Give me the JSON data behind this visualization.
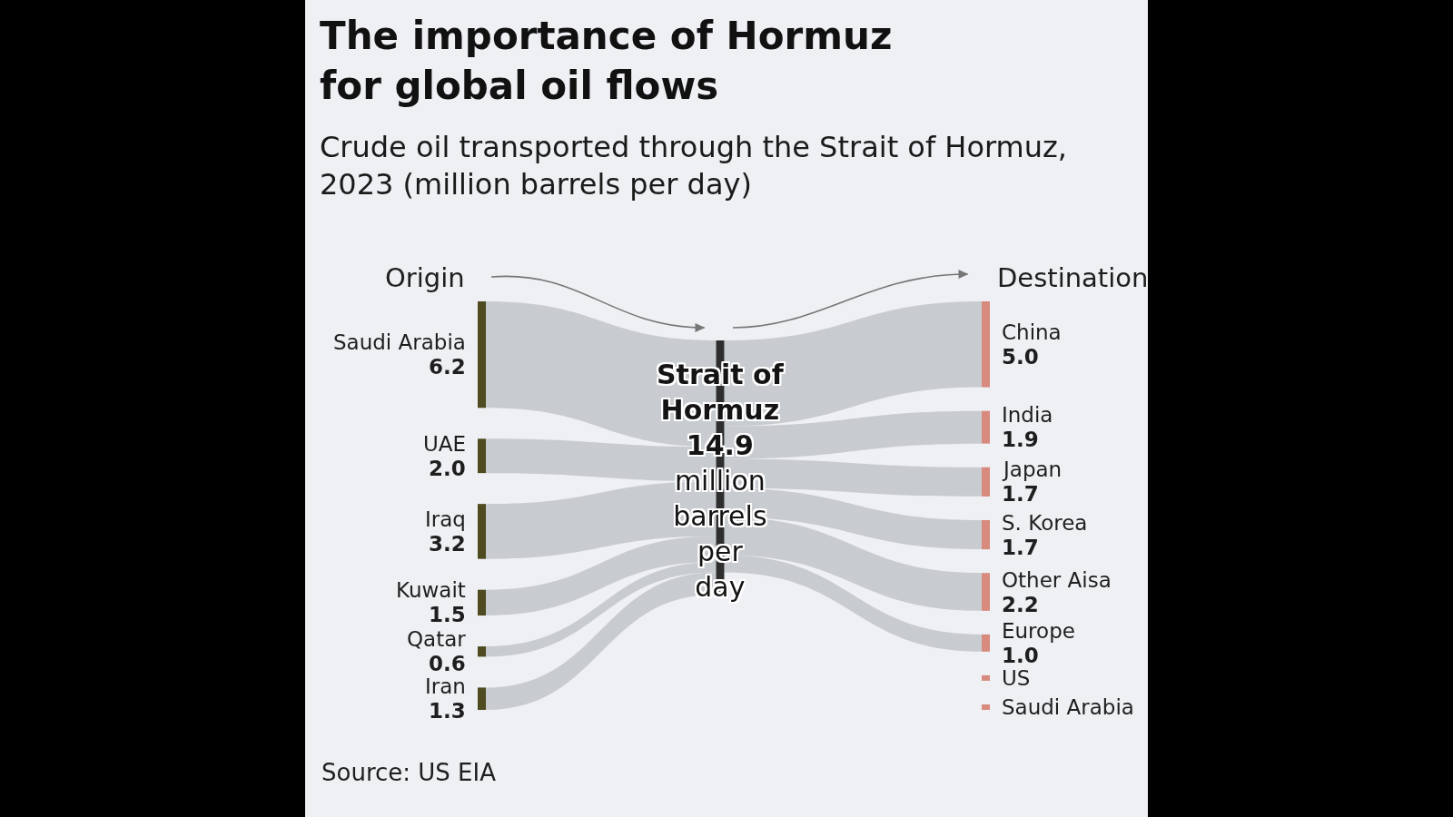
{
  "chart_data": {
    "type": "other",
    "title": "The importance of Hormuz for global oil flows",
    "subtitle": "Crude oil transported through the Strait of Hormuz, 2023 (million barrels per day)",
    "categories": [
      "Saudi Arabia",
      "UAE",
      "Iraq",
      "Kuwait",
      "Qatar",
      "Iran",
      "China",
      "India",
      "Japan",
      "S. Korea",
      "Other Aisa",
      "Europe",
      "US",
      "Saudi Arabia"
    ],
    "series": [
      {
        "color": "#4e4b20",
        "values": [
          6.2,
          2.0,
          3.2,
          1.5,
          0.6,
          1.3,
          null,
          null,
          null,
          null,
          null,
          null,
          null,
          null
        ],
        "value_labels": [
          "6.2",
          "2.0",
          "3.2",
          "1.5",
          "0.6",
          "1.3",
          null,
          null,
          null,
          null,
          null,
          null,
          null,
          null
        ]
      },
      {
        "color": "#d98a7e",
        "values": [
          null,
          null,
          null,
          null,
          null,
          null,
          5.0,
          1.9,
          1.7,
          1.7,
          2.2,
          1.0,
          null,
          null
        ],
        "value_labels": [
          null,
          null,
          null,
          null,
          null,
          null,
          "5.0",
          "1.9",
          "1.7",
          "1.7",
          "2.2",
          "1.0",
          null,
          null
        ]
      }
    ],
    "annotations": [
      "Origin",
      "Destination",
      "Strait of Hormuz",
      "14.9",
      "million barrels per day",
      "Source: US EIA"
    ]
  }
}
